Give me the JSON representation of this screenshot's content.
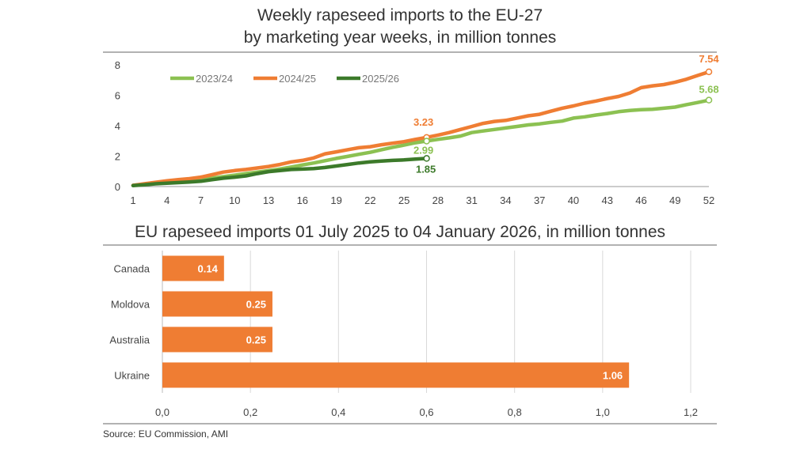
{
  "line_title": "Weekly rapeseed imports to the EU-27\nby marketing year weeks, in million tonnes",
  "bar_title": "EU rapeseed imports 01 July 2025 to 04 January 2026, in million tonnes",
  "source": "Source: EU Commission, AMI",
  "colors": {
    "s2324": "#8cc152",
    "s2425": "#ef7d33",
    "s2526": "#3c7a2a",
    "bar": "#ef7d33",
    "grid": "#d9d9d9"
  },
  "chart_data": [
    {
      "type": "line",
      "title": "Weekly rapeseed imports to the EU-27 by marketing year weeks, in million tonnes",
      "xlabel": "",
      "ylabel": "",
      "xlim": [
        1,
        52
      ],
      "ylim": [
        0,
        8
      ],
      "x_ticks": [
        1,
        4,
        7,
        10,
        13,
        16,
        19,
        22,
        25,
        28,
        31,
        34,
        37,
        40,
        43,
        46,
        49,
        52
      ],
      "y_ticks": [
        0,
        2,
        4,
        6,
        8
      ],
      "legend": "top-left",
      "grid": false,
      "series": [
        {
          "name": "2023/24",
          "color": "#8cc152",
          "x": [
            1,
            2,
            3,
            4,
            5,
            6,
            7,
            8,
            9,
            10,
            11,
            12,
            13,
            14,
            15,
            16,
            17,
            18,
            19,
            20,
            21,
            22,
            23,
            24,
            25,
            26,
            27,
            28,
            29,
            30,
            31,
            32,
            33,
            34,
            35,
            36,
            37,
            38,
            39,
            40,
            41,
            42,
            43,
            44,
            45,
            46,
            47,
            48,
            49,
            50,
            51,
            52
          ],
          "values": [
            0.08,
            0.15,
            0.22,
            0.28,
            0.33,
            0.38,
            0.45,
            0.55,
            0.65,
            0.75,
            0.85,
            0.95,
            1.05,
            1.15,
            1.28,
            1.42,
            1.55,
            1.7,
            1.85,
            1.98,
            2.12,
            2.25,
            2.42,
            2.58,
            2.72,
            2.88,
            2.99,
            3.1,
            3.2,
            3.32,
            3.55,
            3.65,
            3.75,
            3.85,
            3.95,
            4.05,
            4.12,
            4.22,
            4.3,
            4.5,
            4.58,
            4.7,
            4.8,
            4.92,
            5.0,
            5.05,
            5.08,
            5.15,
            5.22,
            5.38,
            5.52,
            5.68
          ],
          "end_label": "5.68"
        },
        {
          "name": "2024/25",
          "color": "#ef7d33",
          "x": [
            1,
            2,
            3,
            4,
            5,
            6,
            7,
            8,
            9,
            10,
            11,
            12,
            13,
            14,
            15,
            16,
            17,
            18,
            19,
            20,
            21,
            22,
            23,
            24,
            25,
            26,
            27,
            28,
            29,
            30,
            31,
            32,
            33,
            34,
            35,
            36,
            37,
            38,
            39,
            40,
            41,
            42,
            43,
            44,
            45,
            46,
            47,
            48,
            49,
            50,
            51,
            52
          ],
          "values": [
            0.08,
            0.18,
            0.28,
            0.38,
            0.45,
            0.52,
            0.62,
            0.78,
            0.95,
            1.05,
            1.12,
            1.22,
            1.32,
            1.45,
            1.62,
            1.72,
            1.88,
            2.15,
            2.28,
            2.42,
            2.55,
            2.62,
            2.75,
            2.85,
            2.95,
            3.1,
            3.23,
            3.38,
            3.55,
            3.75,
            3.95,
            4.15,
            4.28,
            4.35,
            4.5,
            4.65,
            4.75,
            4.95,
            5.15,
            5.3,
            5.48,
            5.62,
            5.78,
            5.92,
            6.15,
            6.5,
            6.62,
            6.7,
            6.85,
            7.05,
            7.3,
            7.54
          ],
          "end_label": "7.54",
          "marked_point": {
            "x": 27,
            "label": "3.23"
          }
        },
        {
          "name": "2025/26",
          "color": "#3c7a2a",
          "x": [
            1,
            2,
            3,
            4,
            5,
            6,
            7,
            8,
            9,
            10,
            11,
            12,
            13,
            14,
            15,
            16,
            17,
            18,
            19,
            20,
            21,
            22,
            23,
            24,
            25,
            26,
            27
          ],
          "values": [
            0.06,
            0.12,
            0.18,
            0.22,
            0.26,
            0.3,
            0.35,
            0.45,
            0.55,
            0.62,
            0.7,
            0.85,
            0.98,
            1.05,
            1.12,
            1.15,
            1.18,
            1.25,
            1.35,
            1.45,
            1.55,
            1.62,
            1.68,
            1.72,
            1.75,
            1.8,
            1.85
          ],
          "end_label": "1.85"
        }
      ],
      "annotations": [
        {
          "series": "2023/24",
          "x": 27,
          "label": "2.99"
        }
      ]
    },
    {
      "type": "bar",
      "orientation": "horizontal",
      "title": "EU rapeseed imports 01 July 2025 to 04 January 2026, in million tonnes",
      "categories": [
        "Canada",
        "Moldova",
        "Australia",
        "Ukraine"
      ],
      "values": [
        0.14,
        0.25,
        0.25,
        1.06
      ],
      "value_labels": [
        "0.14",
        "0.25",
        "0.25",
        "1.06"
      ],
      "x_tick_labels": [
        "0,0",
        "0,2",
        "0,4",
        "0,6",
        "0,8",
        "1,0",
        "1,2"
      ],
      "x_tick_values": [
        0,
        0.2,
        0.4,
        0.6,
        0.8,
        1.0,
        1.2
      ],
      "xlim": [
        0,
        1.2
      ],
      "grid": true,
      "xlabel": "",
      "ylabel": ""
    }
  ]
}
